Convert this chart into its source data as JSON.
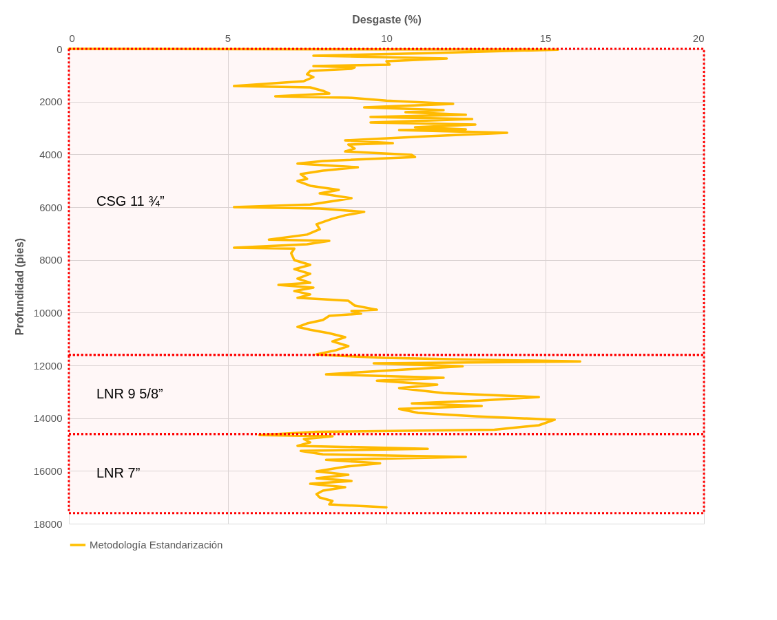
{
  "chart_data": {
    "type": "line",
    "xlabel": "Desgaste (%)",
    "ylabel": "Profundidad (pies)",
    "xlim": [
      0,
      20
    ],
    "xticks": [
      0,
      5,
      10,
      15,
      20
    ],
    "ylim": [
      18000,
      0
    ],
    "yticks": [
      0,
      2000,
      4000,
      6000,
      8000,
      10000,
      12000,
      14000,
      16000,
      18000
    ],
    "grid": true,
    "legend": "bottom",
    "series": [
      {
        "name": "Metodología Estandarización",
        "color": "#ffc000",
        "x": [
          0,
          15.4,
          11.3,
          7.7,
          11.9,
          10.0,
          10.1,
          7.7,
          9.0,
          8.9,
          7.6,
          7.5,
          7.7,
          7.4,
          5.2,
          7.6,
          8.0,
          8.2,
          6.5,
          8.8,
          10.0,
          12.1,
          9.3,
          11.8,
          10.6,
          12.5,
          9.5,
          12.7,
          9.5,
          12.8,
          10.9,
          12.5,
          10.4,
          13.8,
          11.3,
          8.7,
          10.2,
          8.8,
          9.0,
          8.7,
          10.8,
          10.9,
          8.0,
          7.2,
          9.1,
          8.0,
          7.3,
          7.5,
          7.2,
          7.6,
          8.5,
          7.9,
          8.9,
          8.5,
          7.6,
          5.2,
          7.9,
          9.3,
          8.7,
          8.3,
          7.8,
          7.9,
          7.5,
          6.3,
          8.2,
          7.5,
          5.2,
          7.1,
          7.0,
          7.1,
          7.6,
          7.1,
          7.6,
          7.2,
          7.6,
          6.6,
          7.7,
          7.1,
          7.6,
          7.2,
          8.8,
          9.0,
          9.7,
          8.9,
          9.2,
          8.2,
          8.0,
          7.5,
          7.2,
          7.6,
          8.2,
          8.7,
          8.3,
          8.8,
          8.4,
          7.8,
          8.6,
          9.9,
          12.3,
          16.1,
          9.6,
          12.4,
          10.2,
          8.1,
          11.8,
          9.7,
          11.6,
          10.4,
          11.8,
          14.8,
          13.0,
          10.8,
          13.0,
          10.4,
          11.0,
          12.8,
          15.3,
          14.8,
          13.4,
          7.8,
          6.0,
          8.3,
          7.4,
          7.6,
          7.2,
          11.3,
          7.3,
          8.0,
          12.5,
          8.1,
          9.8,
          8.7,
          7.8,
          8.8,
          7.8,
          8.9,
          7.6,
          8.7,
          8.0,
          7.8,
          7.9,
          8.3,
          8.2,
          10.0
        ],
        "values": [
          0,
          30,
          160,
          260,
          365,
          470,
          600,
          650,
          700,
          755,
          835,
          965,
          1070,
          1225,
          1410,
          1460,
          1590,
          1695,
          1800,
          1850,
          1960,
          2085,
          2220,
          2320,
          2400,
          2500,
          2580,
          2660,
          2790,
          2870,
          2975,
          3050,
          3080,
          3180,
          3310,
          3470,
          3575,
          3625,
          3780,
          3890,
          4020,
          4100,
          4250,
          4350,
          4490,
          4620,
          4750,
          4930,
          5010,
          5190,
          5350,
          5480,
          5660,
          5740,
          5900,
          6000,
          6050,
          6180,
          6310,
          6440,
          6650,
          6840,
          7040,
          7230,
          7280,
          7410,
          7540,
          7570,
          7750,
          8010,
          8190,
          8350,
          8530,
          8710,
          8870,
          8950,
          9050,
          9180,
          9310,
          9440,
          9550,
          9730,
          9890,
          9940,
          10040,
          10120,
          10280,
          10410,
          10540,
          10650,
          10780,
          10930,
          11090,
          11270,
          11430,
          11580,
          11640,
          11710,
          11770,
          11850,
          11920,
          12030,
          12180,
          12340,
          12470,
          12580,
          12730,
          12860,
          13050,
          13200,
          13330,
          13440,
          13540,
          13650,
          13800,
          13930,
          14060,
          14270,
          14440,
          14520,
          14640,
          14690,
          14790,
          14920,
          15050,
          15160,
          15240,
          15370,
          15470,
          15580,
          15710,
          15840,
          16020,
          16150,
          16280,
          16380,
          16490,
          16620,
          16750,
          16880,
          17010,
          17140,
          17270,
          17380
        ]
      }
    ],
    "bands": [
      {
        "axis": "y",
        "from": 0,
        "to": 11600,
        "label": "CSG 11 ¾”",
        "color": "#ff0000"
      },
      {
        "axis": "y",
        "from": 11600,
        "to": 14600,
        "label": "LNR 9 5/8”",
        "color": "#ff0000"
      },
      {
        "axis": "y",
        "from": 14600,
        "to": 17600,
        "label": "LNR 7”",
        "color": "#ff0000"
      }
    ]
  }
}
